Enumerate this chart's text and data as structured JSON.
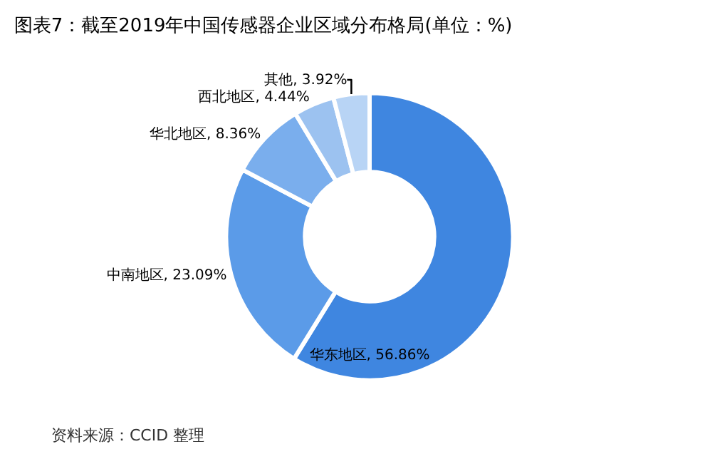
{
  "chart_data": {
    "type": "donut",
    "title": "图表7：截至2019年中国传感器企业区域分布格局(单位：%)",
    "categories": [
      "华东地区",
      "中南地区",
      "华北地区",
      "西北地区",
      "其他"
    ],
    "values": [
      56.86,
      23.09,
      8.36,
      4.44,
      3.92
    ],
    "value_labels": [
      "56.86%",
      "23.09%",
      "8.36%",
      "4.44%",
      "3.92%"
    ],
    "colors": [
      "#3f86e0",
      "#5b9be8",
      "#7aaeed",
      "#9cc2f0",
      "#b8d4f5"
    ],
    "legend": false,
    "annotations": [
      "资料来源：CCID 整理"
    ]
  }
}
